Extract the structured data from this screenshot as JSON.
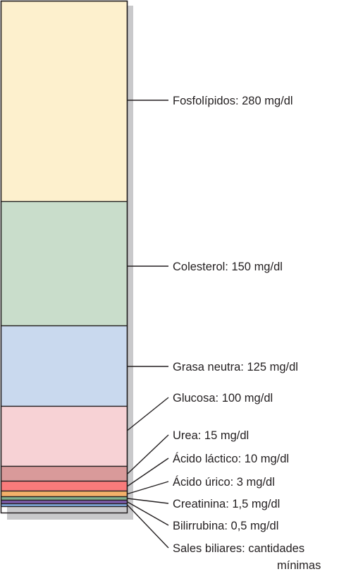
{
  "chart_data": {
    "type": "bar",
    "stacked": true,
    "unit": "mg/dl",
    "segments": [
      {
        "label": "Fosfolípidos: 280 mg/dl",
        "value": 280,
        "color": "#fdf0cd"
      },
      {
        "label": "Colesterol: 150 mg/dl",
        "value": 150,
        "color": "#c9ddcb"
      },
      {
        "label": "Grasa neutra: 125 mg/dl",
        "value": 125,
        "color": "#c9d9ee"
      },
      {
        "label": "Glucosa: 100 mg/dl",
        "value": 100,
        "color": "#f7d2d5"
      },
      {
        "label": "Urea: 15 mg/dl",
        "value": 15,
        "color": "#d99a9a"
      },
      {
        "label": "Ácido láctico: 10 mg/dl",
        "value": 10,
        "color": "#f97b7b"
      },
      {
        "label": "Ácido úrico: 3 mg/dl",
        "value": 3,
        "color": "#f3b06a"
      },
      {
        "label": "Creatinina: 1,5 mg/dl",
        "value": 1.5,
        "color": "#7fae8c"
      },
      {
        "label": "Bilirrubina: 0,5 mg/dl",
        "value": 0.5,
        "color": "#7a5aa7"
      },
      {
        "label": "Sales biliares: cantidades mínimas",
        "value": null,
        "color": "#7fa6d9"
      }
    ]
  }
}
